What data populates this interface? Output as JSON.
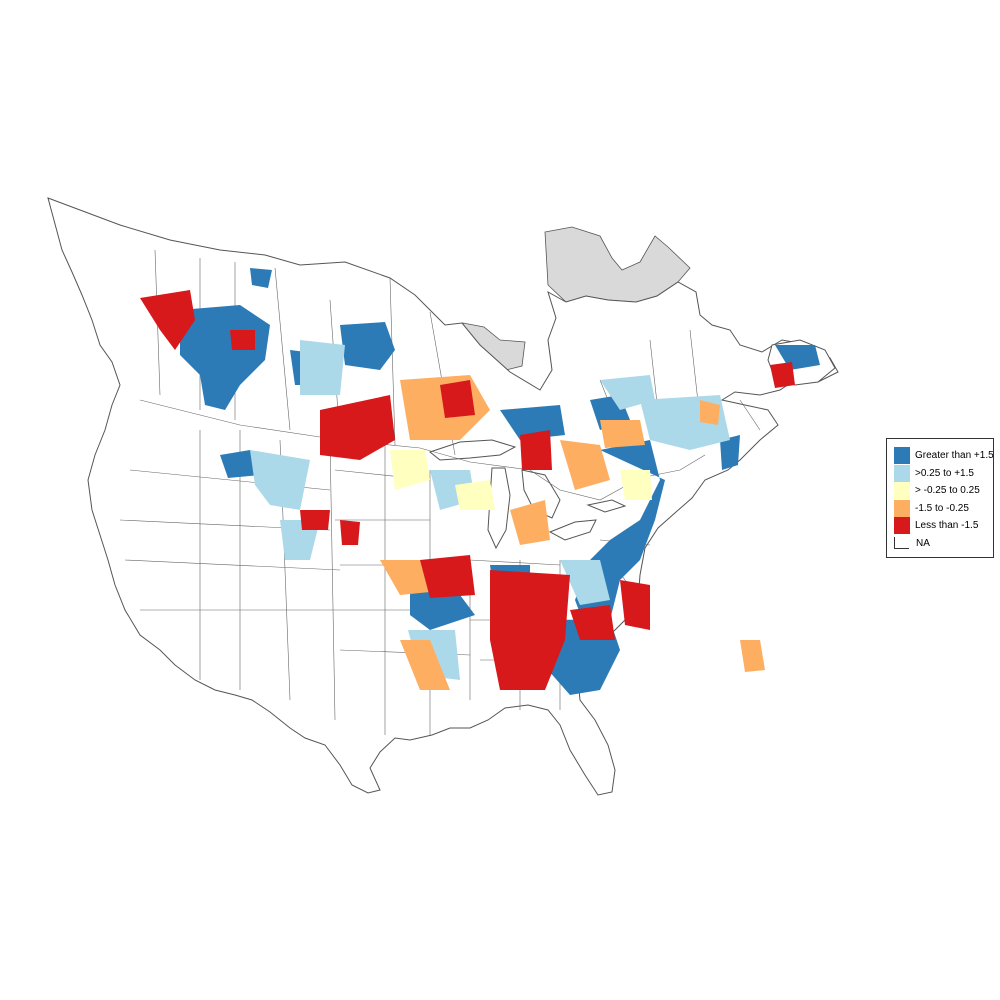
{
  "map": {
    "region": "North America",
    "colors": {
      "land": "#ffffff",
      "boundary": "#555555",
      "na_fill": "#d9d9d9",
      "greater_than_1_5": "#2c7bb6",
      "0_25_to_1_5": "#abd9e9",
      "neg_0_25_to_0_25": "#ffffbf",
      "neg_1_5_to_neg_0_25": "#fdae61",
      "less_than_neg_1_5": "#d7191c"
    }
  },
  "legend": {
    "items": [
      {
        "label": "Greater than +1.5",
        "color": "#2c7bb6"
      },
      {
        "label": ">0.25 to +1.5",
        "color": "#abd9e9"
      },
      {
        "label": "> -0.25 to 0.25",
        "color": "#ffffbf"
      },
      {
        "label": "-1.5 to -0.25",
        "color": "#fdae61"
      },
      {
        "label": "Less than -1.5",
        "color": "#d7191c"
      },
      {
        "label": "NA",
        "color": ""
      }
    ]
  }
}
